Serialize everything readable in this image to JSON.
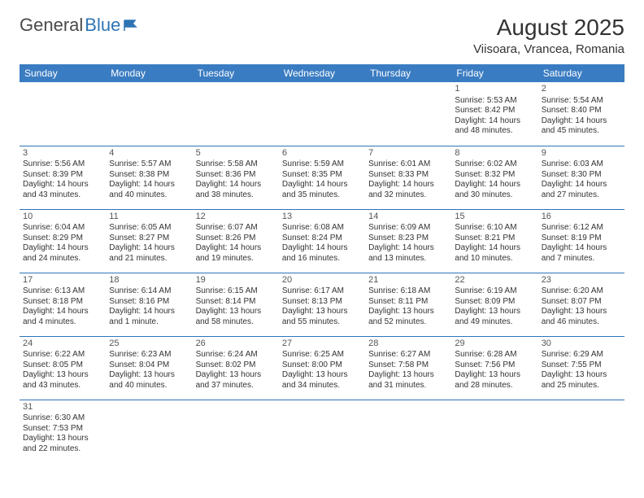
{
  "logo": {
    "text1": "General",
    "text2": "Blue"
  },
  "title": "August 2025",
  "location": "Viisoara, Vrancea, Romania",
  "colors": {
    "header_bg": "#3a7cc2",
    "header_text": "#ffffff",
    "border": "#2e74b5",
    "text": "#333333",
    "logo_gray": "#4a4a4a",
    "logo_blue": "#2e74b5",
    "page_bg": "#ffffff"
  },
  "weekdays": [
    "Sunday",
    "Monday",
    "Tuesday",
    "Wednesday",
    "Thursday",
    "Friday",
    "Saturday"
  ],
  "weeks": [
    [
      null,
      null,
      null,
      null,
      null,
      {
        "n": "1",
        "sr": "Sunrise: 5:53 AM",
        "ss": "Sunset: 8:42 PM",
        "d1": "Daylight: 14 hours",
        "d2": "and 48 minutes."
      },
      {
        "n": "2",
        "sr": "Sunrise: 5:54 AM",
        "ss": "Sunset: 8:40 PM",
        "d1": "Daylight: 14 hours",
        "d2": "and 45 minutes."
      }
    ],
    [
      {
        "n": "3",
        "sr": "Sunrise: 5:56 AM",
        "ss": "Sunset: 8:39 PM",
        "d1": "Daylight: 14 hours",
        "d2": "and 43 minutes."
      },
      {
        "n": "4",
        "sr": "Sunrise: 5:57 AM",
        "ss": "Sunset: 8:38 PM",
        "d1": "Daylight: 14 hours",
        "d2": "and 40 minutes."
      },
      {
        "n": "5",
        "sr": "Sunrise: 5:58 AM",
        "ss": "Sunset: 8:36 PM",
        "d1": "Daylight: 14 hours",
        "d2": "and 38 minutes."
      },
      {
        "n": "6",
        "sr": "Sunrise: 5:59 AM",
        "ss": "Sunset: 8:35 PM",
        "d1": "Daylight: 14 hours",
        "d2": "and 35 minutes."
      },
      {
        "n": "7",
        "sr": "Sunrise: 6:01 AM",
        "ss": "Sunset: 8:33 PM",
        "d1": "Daylight: 14 hours",
        "d2": "and 32 minutes."
      },
      {
        "n": "8",
        "sr": "Sunrise: 6:02 AM",
        "ss": "Sunset: 8:32 PM",
        "d1": "Daylight: 14 hours",
        "d2": "and 30 minutes."
      },
      {
        "n": "9",
        "sr": "Sunrise: 6:03 AM",
        "ss": "Sunset: 8:30 PM",
        "d1": "Daylight: 14 hours",
        "d2": "and 27 minutes."
      }
    ],
    [
      {
        "n": "10",
        "sr": "Sunrise: 6:04 AM",
        "ss": "Sunset: 8:29 PM",
        "d1": "Daylight: 14 hours",
        "d2": "and 24 minutes."
      },
      {
        "n": "11",
        "sr": "Sunrise: 6:05 AM",
        "ss": "Sunset: 8:27 PM",
        "d1": "Daylight: 14 hours",
        "d2": "and 21 minutes."
      },
      {
        "n": "12",
        "sr": "Sunrise: 6:07 AM",
        "ss": "Sunset: 8:26 PM",
        "d1": "Daylight: 14 hours",
        "d2": "and 19 minutes."
      },
      {
        "n": "13",
        "sr": "Sunrise: 6:08 AM",
        "ss": "Sunset: 8:24 PM",
        "d1": "Daylight: 14 hours",
        "d2": "and 16 minutes."
      },
      {
        "n": "14",
        "sr": "Sunrise: 6:09 AM",
        "ss": "Sunset: 8:23 PM",
        "d1": "Daylight: 14 hours",
        "d2": "and 13 minutes."
      },
      {
        "n": "15",
        "sr": "Sunrise: 6:10 AM",
        "ss": "Sunset: 8:21 PM",
        "d1": "Daylight: 14 hours",
        "d2": "and 10 minutes."
      },
      {
        "n": "16",
        "sr": "Sunrise: 6:12 AM",
        "ss": "Sunset: 8:19 PM",
        "d1": "Daylight: 14 hours",
        "d2": "and 7 minutes."
      }
    ],
    [
      {
        "n": "17",
        "sr": "Sunrise: 6:13 AM",
        "ss": "Sunset: 8:18 PM",
        "d1": "Daylight: 14 hours",
        "d2": "and 4 minutes."
      },
      {
        "n": "18",
        "sr": "Sunrise: 6:14 AM",
        "ss": "Sunset: 8:16 PM",
        "d1": "Daylight: 14 hours",
        "d2": "and 1 minute."
      },
      {
        "n": "19",
        "sr": "Sunrise: 6:15 AM",
        "ss": "Sunset: 8:14 PM",
        "d1": "Daylight: 13 hours",
        "d2": "and 58 minutes."
      },
      {
        "n": "20",
        "sr": "Sunrise: 6:17 AM",
        "ss": "Sunset: 8:13 PM",
        "d1": "Daylight: 13 hours",
        "d2": "and 55 minutes."
      },
      {
        "n": "21",
        "sr": "Sunrise: 6:18 AM",
        "ss": "Sunset: 8:11 PM",
        "d1": "Daylight: 13 hours",
        "d2": "and 52 minutes."
      },
      {
        "n": "22",
        "sr": "Sunrise: 6:19 AM",
        "ss": "Sunset: 8:09 PM",
        "d1": "Daylight: 13 hours",
        "d2": "and 49 minutes."
      },
      {
        "n": "23",
        "sr": "Sunrise: 6:20 AM",
        "ss": "Sunset: 8:07 PM",
        "d1": "Daylight: 13 hours",
        "d2": "and 46 minutes."
      }
    ],
    [
      {
        "n": "24",
        "sr": "Sunrise: 6:22 AM",
        "ss": "Sunset: 8:05 PM",
        "d1": "Daylight: 13 hours",
        "d2": "and 43 minutes."
      },
      {
        "n": "25",
        "sr": "Sunrise: 6:23 AM",
        "ss": "Sunset: 8:04 PM",
        "d1": "Daylight: 13 hours",
        "d2": "and 40 minutes."
      },
      {
        "n": "26",
        "sr": "Sunrise: 6:24 AM",
        "ss": "Sunset: 8:02 PM",
        "d1": "Daylight: 13 hours",
        "d2": "and 37 minutes."
      },
      {
        "n": "27",
        "sr": "Sunrise: 6:25 AM",
        "ss": "Sunset: 8:00 PM",
        "d1": "Daylight: 13 hours",
        "d2": "and 34 minutes."
      },
      {
        "n": "28",
        "sr": "Sunrise: 6:27 AM",
        "ss": "Sunset: 7:58 PM",
        "d1": "Daylight: 13 hours",
        "d2": "and 31 minutes."
      },
      {
        "n": "29",
        "sr": "Sunrise: 6:28 AM",
        "ss": "Sunset: 7:56 PM",
        "d1": "Daylight: 13 hours",
        "d2": "and 28 minutes."
      },
      {
        "n": "30",
        "sr": "Sunrise: 6:29 AM",
        "ss": "Sunset: 7:55 PM",
        "d1": "Daylight: 13 hours",
        "d2": "and 25 minutes."
      }
    ],
    [
      {
        "n": "31",
        "sr": "Sunrise: 6:30 AM",
        "ss": "Sunset: 7:53 PM",
        "d1": "Daylight: 13 hours",
        "d2": "and 22 minutes."
      },
      null,
      null,
      null,
      null,
      null,
      null
    ]
  ]
}
